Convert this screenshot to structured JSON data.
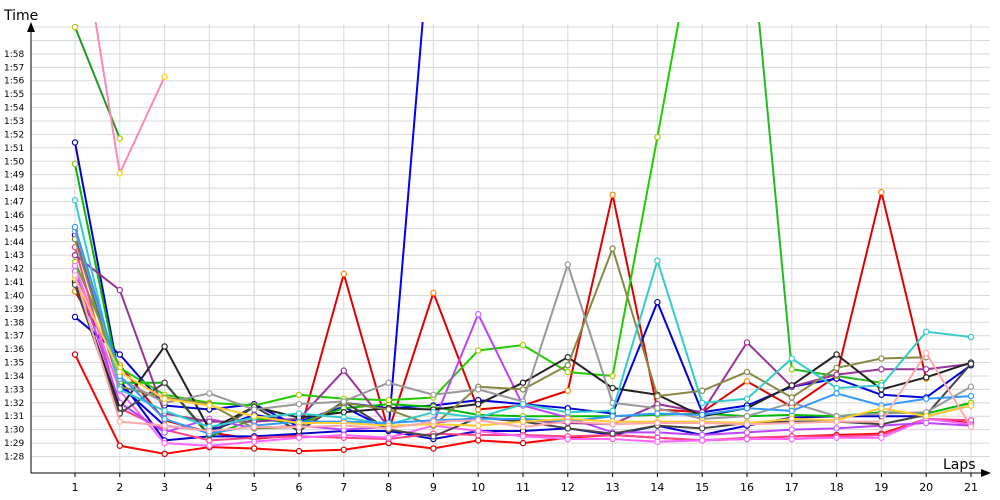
{
  "chart_data": {
    "type": "line",
    "xlabel": "Laps",
    "ylabel": "Time",
    "x": [
      1,
      2,
      3,
      4,
      5,
      6,
      7,
      8,
      9,
      10,
      11,
      12,
      13,
      14,
      15,
      16,
      17,
      18,
      19,
      20,
      21
    ],
    "y_ticks": [
      "1:28",
      "1:29",
      "1:30",
      "1:31",
      "1:32",
      "1:33",
      "1:34",
      "1:35",
      "1:36",
      "1:37",
      "1:38",
      "1:39",
      "1:40",
      "1:41",
      "1:42",
      "1:43",
      "1:44",
      "1:45",
      "1:46",
      "1:47",
      "1:48",
      "1:49",
      "1:50",
      "1:51",
      "1:52",
      "1:53",
      "1:54",
      "1:55",
      "1:56",
      "1:57",
      "1:58"
    ],
    "ylim_seconds": [
      87,
      119.5
    ],
    "grid": true,
    "legend": "none",
    "series": [
      {
        "color": "#ff0000",
        "marker": "#cc0000",
        "values": [
          95.6,
          88.8,
          88.2,
          88.7,
          88.6,
          88.4,
          88.5,
          89.0,
          88.6,
          89.2,
          89.0,
          89.4,
          89.6,
          89.4,
          89.2,
          89.3,
          89.5,
          89.6,
          89.7,
          90.8,
          90.5
        ]
      },
      {
        "color": "#e00000",
        "marker": "#ff8800",
        "values": [
          100.3,
          94.8,
          90.7,
          89.8,
          89.3,
          89.6,
          101.6,
          89.9,
          100.2,
          91.5,
          91.8,
          92.9,
          107.5,
          91.5,
          91.3,
          93.6,
          91.7,
          94.0,
          107.7,
          93.8,
          null
        ]
      },
      {
        "color": "#0000cc",
        "marker": "#0000cc",
        "values": [
          111.4,
          93.7,
          89.2,
          89.5,
          89.5,
          89.7,
          89.9,
          89.9,
          89.3,
          89.9,
          89.9,
          90.1,
          89.6,
          90.3,
          89.6,
          90.3,
          90.9,
          91.0,
          91.0,
          91.0,
          91.8
        ]
      },
      {
        "color": "#0000dd",
        "marker": "#0000aa",
        "values": [
          98.4,
          95.6,
          91.8,
          91.5,
          91.9,
          90.2,
          92.0,
          91.6,
          91.8,
          92.2,
          91.9,
          91.6,
          91.2,
          99.5,
          91.3,
          91.8,
          93.2,
          93.8,
          92.6,
          92.4,
          94.8
        ]
      },
      {
        "color": "#0000ff",
        "marker": "#0000ff",
        "values": [
          104.5,
          93.3,
          90.3,
          89.9,
          91.1,
          90.6,
          91.7,
          90.0,
          130.0,
          null,
          null,
          null,
          null,
          null,
          null,
          null,
          null,
          null,
          null,
          null,
          null
        ]
      },
      {
        "color": "#00bb00",
        "marker": "#88cc00",
        "values": [
          109.8,
          93.5,
          93.5,
          89.5,
          90.8,
          90.5,
          91.6,
          91.9,
          91.7,
          91.1,
          91.0,
          91.0,
          91.0,
          91.1,
          91.2,
          91.0,
          91.1,
          91.0,
          91.3,
          91.2,
          92.0
        ]
      },
      {
        "color": "#22cc00",
        "marker": "#aacc00",
        "values": [
          102.5,
          94.6,
          92.6,
          92.0,
          91.8,
          92.6,
          92.3,
          92.2,
          92.4,
          95.9,
          96.3,
          94.3,
          94.0,
          111.8,
          130.0,
          null,
          null,
          null,
          null,
          null,
          null
        ]
      },
      {
        "color": "#22bb22",
        "marker": "#99cc00",
        "values": [
          null,
          null,
          null,
          null,
          null,
          null,
          null,
          null,
          null,
          null,
          null,
          null,
          null,
          null,
          null,
          130.0,
          94.5,
          94.0,
          93.5,
          null,
          null
        ]
      },
      {
        "color": "#229922",
        "marker": "#aacc00",
        "values": [
          120.0,
          111.7,
          null,
          null,
          null,
          null,
          null,
          null,
          null,
          null,
          null,
          null,
          null,
          null,
          null,
          null,
          null,
          null,
          null,
          null,
          null
        ]
      },
      {
        "color": "#ff88bb",
        "marker": "#ffcc00",
        "values": [
          130.0,
          109.1,
          116.3,
          null,
          null,
          null,
          null,
          null,
          null,
          null,
          null,
          null,
          null,
          null,
          null,
          null,
          null,
          null,
          null,
          null,
          null
        ]
      },
      {
        "color": "#ff4488",
        "marker": "#ff4488",
        "values": [
          103.6,
          91.6,
          90.0,
          89.2,
          89.4,
          89.5,
          89.4,
          89.3,
          89.7,
          89.6,
          89.6,
          89.5,
          89.6,
          89.4,
          89.2,
          89.4,
          89.5,
          89.5,
          89.6,
          90.8,
          90.7
        ]
      },
      {
        "color": "#ff66ff",
        "marker": "#ff66ff",
        "values": [
          102.2,
          92.9,
          89.0,
          88.8,
          89.1,
          89.4,
          89.6,
          89.4,
          90.3,
          89.9,
          89.5,
          89.3,
          89.3,
          89.1,
          89.2,
          89.3,
          89.3,
          89.4,
          89.4,
          90.8,
          90.4
        ]
      },
      {
        "color": "#bb44ff",
        "marker": "#cc66ff",
        "values": [
          101.8,
          92.0,
          89.8,
          90.8,
          90.1,
          90.3,
          90.0,
          90.2,
          90.5,
          98.6,
          91.8,
          90.9,
          89.8,
          89.8,
          89.6,
          89.8,
          90.0,
          90.1,
          90.3,
          90.5,
          90.3
        ]
      },
      {
        "color": "#993399",
        "marker": "#993399",
        "values": [
          103.0,
          100.4,
          91.2,
          90.6,
          90.6,
          90.8,
          94.4,
          90.2,
          90.5,
          90.9,
          90.7,
          90.5,
          90.4,
          91.9,
          91.3,
          96.5,
          93.2,
          94.1,
          94.5,
          94.5,
          94.9
        ]
      },
      {
        "color": "#222222",
        "marker": "#222222",
        "values": [
          101.0,
          91.6,
          96.2,
          90.0,
          91.7,
          90.9,
          91.3,
          91.6,
          91.5,
          91.9,
          93.5,
          95.4,
          93.1,
          92.6,
          91.0,
          91.6,
          93.3,
          95.6,
          93.0,
          93.9,
          95.0
        ]
      },
      {
        "color": "#444444",
        "marker": "#444444",
        "values": [
          100.8,
          91.2,
          93.5,
          89.6,
          91.7,
          89.9,
          92.1,
          90.0,
          89.5,
          90.9,
          90.6,
          90.1,
          89.7,
          90.3,
          90.1,
          90.5,
          90.6,
          90.6,
          90.4,
          91.1,
          94.9
        ]
      },
      {
        "color": "#888844",
        "marker": "#888844",
        "values": [
          104.2,
          93.2,
          92.4,
          91.9,
          90.1,
          90.2,
          92.0,
          91.5,
          90.3,
          93.2,
          93.0,
          94.8,
          103.5,
          92.5,
          92.9,
          94.3,
          92.4,
          94.6,
          95.3,
          95.4,
          null
        ]
      },
      {
        "color": "#999999",
        "marker": "#999999",
        "values": [
          104.8,
          93.8,
          92.0,
          92.7,
          91.5,
          91.9,
          92.1,
          93.5,
          92.6,
          93.0,
          92.1,
          102.3,
          92.0,
          91.6,
          90.8,
          91.0,
          92.0,
          91.0,
          91.2,
          91.3,
          93.2
        ]
      },
      {
        "color": "#33cccc",
        "marker": "#33cccc",
        "values": [
          107.1,
          93.0,
          91.4,
          90.2,
          90.9,
          91.2,
          90.9,
          90.4,
          91.3,
          90.9,
          91.9,
          91.3,
          91.4,
          102.6,
          92.0,
          92.3,
          95.3,
          93.1,
          93.3,
          97.3,
          96.9
        ]
      },
      {
        "color": "#3399ff",
        "marker": "#3399ff",
        "values": [
          105.1,
          94.0,
          90.8,
          89.7,
          90.3,
          90.6,
          90.6,
          90.5,
          90.7,
          90.8,
          90.8,
          90.6,
          91.0,
          91.2,
          91.1,
          91.6,
          91.4,
          92.7,
          91.8,
          92.3,
          92.5
        ]
      },
      {
        "color": "#ffcc33",
        "marker": "#ffcc33",
        "values": [
          101.3,
          94.3,
          92.3,
          91.8,
          91.0,
          90.5,
          90.5,
          90.3,
          90.4,
          90.3,
          90.6,
          90.8,
          90.6,
          90.6,
          90.6,
          90.5,
          90.8,
          90.7,
          91.6,
          91.0,
          91.8
        ]
      },
      {
        "color": "#ffaaaa",
        "marker": "#ffaaaa",
        "values": [
          101.5,
          90.6,
          90.3,
          89.9,
          90.2,
          90.2,
          90.3,
          90.1,
          90.6,
          90.7,
          90.2,
          90.6,
          90.4,
          90.5,
          90.5,
          90.4,
          90.5,
          90.6,
          90.6,
          95.7,
          90.2
        ]
      }
    ]
  }
}
